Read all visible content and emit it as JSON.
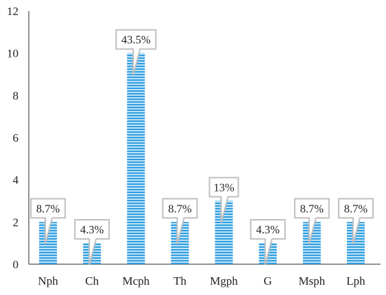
{
  "chart_data": {
    "type": "bar",
    "categories": [
      "Nph",
      "Ch",
      "Mcph",
      "Th",
      "Mgph",
      "G",
      "Msph",
      "Lph"
    ],
    "values": [
      2,
      1,
      10,
      2,
      3,
      1,
      2,
      2
    ],
    "data_labels": [
      "8.7%",
      "4.3%",
      "43.5%",
      "8.7%",
      "13%",
      "4.3%",
      "8.7%",
      "8.7%"
    ],
    "y_ticks": [
      "0",
      "2",
      "4",
      "6",
      "8",
      "10",
      "12"
    ],
    "ylim": [
      0,
      12
    ],
    "title": "",
    "xlabel": "",
    "ylabel": "",
    "grid": false,
    "bar_style": "horizontal-stripes",
    "colors": {
      "bar_light": "#bfe2f6",
      "bar_dark": "#2f9ee0",
      "axis": "#262626",
      "callout_border": "#bfbfbf"
    }
  }
}
